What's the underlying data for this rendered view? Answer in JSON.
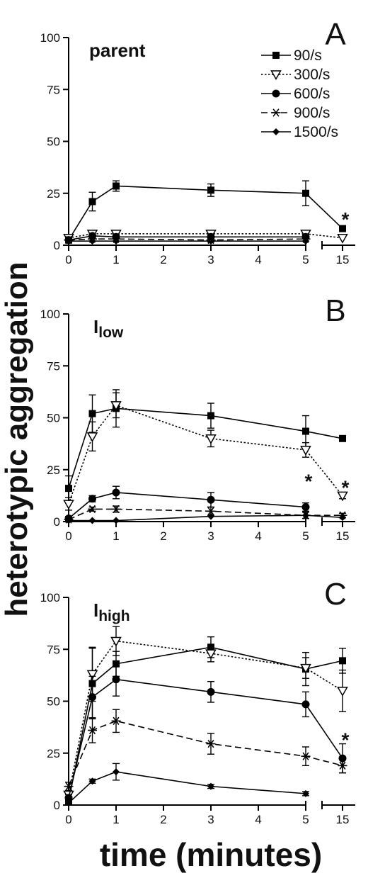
{
  "figure": {
    "ylabel": "heterotypic aggregation",
    "xlabel": "time (minutes)"
  },
  "legend": [
    {
      "label": "90/s",
      "marker": "filled-square",
      "dash": "solid"
    },
    {
      "label": "300/s",
      "marker": "open-triangle-down",
      "dash": "dotted"
    },
    {
      "label": "600/s",
      "marker": "filled-circle",
      "dash": "solid"
    },
    {
      "label": "900/s",
      "marker": "asterisk",
      "dash": "dashed"
    },
    {
      "label": "1500/s",
      "marker": "filled-diamond",
      "dash": "solid"
    }
  ],
  "chart_data": [
    {
      "type": "line",
      "panel_letter": "A",
      "panel_title": "parent",
      "panel_title_sub": "",
      "ylim": [
        0,
        100
      ],
      "yticks": [
        0,
        25,
        50,
        75,
        100
      ],
      "xticks": [
        0,
        1,
        2,
        3,
        4,
        5,
        15
      ],
      "x_axis_break": "between 5 and 15",
      "series": [
        {
          "name": "90/s",
          "x": [
            0,
            0.5,
            1,
            3,
            5,
            15
          ],
          "y": [
            2.5,
            21,
            28.5,
            26.5,
            25,
            8
          ],
          "err": [
            2.5,
            4.5,
            2.5,
            3,
            6,
            1
          ]
        },
        {
          "name": "300/s",
          "x": [
            0,
            0.5,
            1,
            3,
            5,
            15
          ],
          "y": [
            3.5,
            5.5,
            5.5,
            5.5,
            5.5,
            3.5
          ],
          "err": [
            1.5,
            1,
            1.5,
            1,
            1,
            0.5
          ]
        },
        {
          "name": "600/s",
          "x": [
            0,
            0.5,
            1,
            3,
            5
          ],
          "y": [
            2.5,
            4.5,
            4,
            4,
            4
          ],
          "err": [
            1,
            1,
            1,
            1,
            1
          ]
        },
        {
          "name": "900/s",
          "x": [
            0,
            0.5,
            1,
            3,
            5
          ],
          "y": [
            2.5,
            3,
            3,
            2.5,
            3
          ],
          "err": [
            1,
            1,
            1,
            1,
            1
          ]
        },
        {
          "name": "1500/s",
          "x": [
            0,
            0.5,
            1,
            3,
            5
          ],
          "y": [
            2,
            2,
            2,
            2,
            2
          ],
          "err": [
            0.5,
            0.5,
            0.5,
            0.5,
            0.5
          ]
        }
      ],
      "annotations": [
        {
          "text": "*",
          "x": 15,
          "y": 14
        }
      ]
    },
    {
      "type": "line",
      "panel_letter": "B",
      "panel_title": "I",
      "panel_title_sub": "low",
      "ylim": [
        0,
        100
      ],
      "yticks": [
        0,
        25,
        50,
        75,
        100
      ],
      "xticks": [
        0,
        1,
        2,
        3,
        4,
        5,
        15
      ],
      "x_axis_break": "between 5 and 15",
      "series": [
        {
          "name": "90/s",
          "x": [
            0,
            0.5,
            1,
            3,
            5,
            15
          ],
          "y": [
            16,
            52,
            54.5,
            51,
            43.5,
            40
          ],
          "err": [
            6,
            9,
            9,
            6,
            7.5,
            1
          ]
        },
        {
          "name": "300/s",
          "x": [
            0,
            0.5,
            1,
            3,
            5,
            15
          ],
          "y": [
            8.5,
            41,
            56,
            40,
            34.5,
            12.5
          ],
          "err": [
            3,
            7,
            6,
            4,
            3.5,
            1.5
          ]
        },
        {
          "name": "600/s",
          "x": [
            0,
            0.5,
            1,
            3,
            5
          ],
          "y": [
            1.5,
            11,
            14,
            10.5,
            7
          ],
          "err": [
            1,
            1.5,
            3,
            3.5,
            2
          ]
        },
        {
          "name": "900/s",
          "x": [
            0,
            0.5,
            1,
            3,
            5,
            15
          ],
          "y": [
            1,
            6,
            6,
            5,
            3,
            3
          ],
          "err": [
            1,
            1,
            1.5,
            2,
            1.5,
            1
          ]
        },
        {
          "name": "1500/s",
          "x": [
            0,
            0.5,
            1,
            3,
            5,
            15
          ],
          "y": [
            0.5,
            0.5,
            0.5,
            2.5,
            3,
            2
          ],
          "err": [
            0.5,
            0.5,
            0.5,
            0.5,
            0.5,
            0.5
          ]
        }
      ],
      "annotations": [
        {
          "text": "*",
          "x": 5,
          "y": 21
        },
        {
          "text": "*",
          "x": 15,
          "y": 18
        }
      ]
    },
    {
      "type": "line",
      "panel_letter": "C",
      "panel_title": "I",
      "panel_title_sub": "high",
      "ylim": [
        0,
        100
      ],
      "yticks": [
        0,
        25,
        50,
        75,
        100
      ],
      "xticks": [
        0,
        1,
        2,
        3,
        4,
        5,
        15
      ],
      "x_axis_break": "between 5 and 15",
      "series": [
        {
          "name": "90/s",
          "x": [
            0,
            0.5,
            1,
            3,
            5,
            15
          ],
          "y": [
            2,
            58.5,
            68,
            76,
            65.5,
            69.5
          ],
          "err": [
            1.5,
            17,
            6,
            5,
            8,
            6
          ]
        },
        {
          "name": "300/s",
          "x": [
            0,
            0.5,
            1,
            3,
            5,
            15
          ],
          "y": [
            5,
            63,
            79,
            73,
            66,
            55
          ],
          "err": [
            2,
            13,
            7,
            4,
            5,
            10
          ]
        },
        {
          "name": "600/s",
          "x": [
            0,
            0.5,
            1,
            3,
            5,
            15
          ],
          "y": [
            3.5,
            52,
            60.5,
            54.5,
            48.5,
            22.5
          ],
          "err": [
            1.5,
            10,
            8,
            5,
            6,
            7
          ]
        },
        {
          "name": "900/s",
          "x": [
            0,
            0.5,
            1,
            3,
            5,
            15
          ],
          "y": [
            9,
            36,
            40.5,
            29.5,
            23.5,
            19
          ],
          "err": [
            2,
            6,
            5.5,
            5,
            4.5,
            3.5
          ]
        },
        {
          "name": "1500/s",
          "x": [
            0,
            0.5,
            1,
            3,
            5
          ],
          "y": [
            1,
            11.5,
            16,
            9,
            5.5
          ],
          "err": [
            1,
            1,
            4,
            1,
            1
          ]
        }
      ],
      "annotations": [
        {
          "text": "*",
          "x": 15,
          "y": 33
        }
      ]
    }
  ]
}
